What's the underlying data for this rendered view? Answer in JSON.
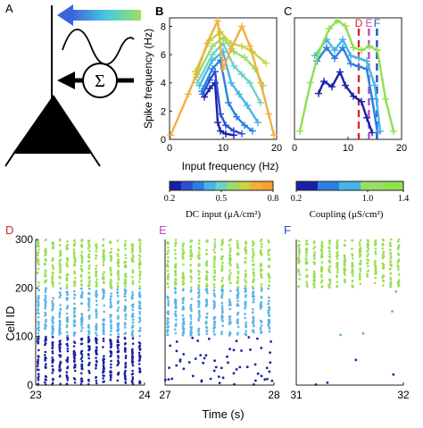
{
  "panels": {
    "A": {
      "label": "A",
      "label_color": "#222222"
    },
    "B": {
      "label": "B",
      "label_color": "#222222"
    },
    "C": {
      "label": "C",
      "label_color": "#222222"
    },
    "D": {
      "label": "D",
      "label_color": "#d62728"
    },
    "E": {
      "label": "E",
      "label_color": "#b84fc4"
    },
    "F": {
      "label": "F",
      "label_color": "#2050c8"
    }
  },
  "schematic": {
    "icons": [
      "input-arrow-icon",
      "sine-wave-icon",
      "summation-node-icon",
      "pyramidal-neuron-icon"
    ],
    "sum_symbol": "Σ",
    "input_gradient": [
      "#3a64dc",
      "#48c8e0",
      "#9ce060"
    ]
  },
  "colorbars": {
    "dc": {
      "ticks": [
        "0.2",
        "0.5",
        "0.8"
      ],
      "label": "DC input (μA/cm²)",
      "colors": [
        "#1a20a8",
        "#2a50d0",
        "#2a80e0",
        "#46b4e6",
        "#6ed2c8",
        "#9adc6a",
        "#c8d440",
        "#f0b040",
        "#f8a030"
      ]
    },
    "coupling": {
      "ticks": [
        "0.2",
        "1.0",
        "1.4"
      ],
      "label": "Coupling (μS/cm²)",
      "colors": [
        "#1a20a8",
        "#2a80e0",
        "#46b4e6",
        "#9adc6a",
        "#90e050"
      ]
    }
  },
  "raster": {
    "ylabel": "Cell ID",
    "xlabel": "Time (s)",
    "yticks": [
      "0",
      "100",
      "200",
      "300"
    ],
    "group_colors": [
      "#1a24a0",
      "#5ab4e6",
      "#96e050"
    ]
  },
  "chart_data": [
    {
      "panel": "B",
      "type": "line",
      "xlabel": "Input frequency (Hz)",
      "ylabel": "Spike frequency (Hz)",
      "xlim": [
        0,
        20
      ],
      "ylim": [
        0,
        8.6
      ],
      "xticks": [
        "0",
        "10",
        "20"
      ],
      "yticks": [
        "0",
        "2",
        "4",
        "6",
        "8"
      ],
      "series": [
        {
          "color": "#1a20a8",
          "points": [
            [
              6.5,
              3.0
            ],
            [
              7.5,
              3.6
            ],
            [
              8.5,
              4.0
            ],
            [
              9.0,
              1.2
            ],
            [
              9.5,
              0.6
            ],
            [
              10.5,
              0.4
            ],
            [
              12.0,
              0.3
            ]
          ]
        },
        {
          "color": "#2a50d0",
          "points": [
            [
              6.2,
              3.2
            ],
            [
              7.5,
              4.2
            ],
            [
              8.5,
              4.8
            ],
            [
              9.5,
              1.8
            ],
            [
              10.5,
              1.0
            ],
            [
              12.0,
              0.6
            ],
            [
              13.5,
              0.4
            ]
          ]
        },
        {
          "color": "#2a80e0",
          "points": [
            [
              6.0,
              3.4
            ],
            [
              8.0,
              5.0
            ],
            [
              9.5,
              5.6
            ],
            [
              11.0,
              2.6
            ],
            [
              12.5,
              1.6
            ],
            [
              14.0,
              1.0
            ],
            [
              15.5,
              0.6
            ]
          ]
        },
        {
          "color": "#46b4e6",
          "points": [
            [
              5.6,
              3.8
            ],
            [
              8.0,
              5.6
            ],
            [
              10.0,
              6.2
            ],
            [
              11.5,
              4.0
            ],
            [
              13.0,
              3.2
            ],
            [
              14.5,
              2.4
            ],
            [
              16.5,
              1.2
            ]
          ]
        },
        {
          "color": "#6ed2c8",
          "points": [
            [
              5.2,
              4.0
            ],
            [
              8.0,
              6.0
            ],
            [
              10.0,
              6.8
            ],
            [
              12.0,
              5.2
            ],
            [
              13.5,
              4.6
            ],
            [
              15.0,
              4.0
            ],
            [
              17.0,
              2.6
            ]
          ]
        },
        {
          "color": "#9adc6a",
          "points": [
            [
              5.0,
              4.4
            ],
            [
              8.0,
              6.6
            ],
            [
              10.0,
              7.2
            ],
            [
              12.0,
              6.2
            ],
            [
              14.0,
              5.8
            ],
            [
              16.0,
              5.0
            ],
            [
              17.5,
              3.8
            ]
          ]
        },
        {
          "color": "#c8d440",
          "points": [
            [
              4.8,
              4.8
            ],
            [
              7.5,
              7.0
            ],
            [
              9.5,
              7.6
            ],
            [
              11.5,
              6.8
            ],
            [
              13.5,
              6.6
            ],
            [
              15.5,
              6.2
            ],
            [
              18.0,
              5.4
            ]
          ]
        },
        {
          "color": "#f0b040",
          "points": [
            [
              0.2,
              0.3
            ],
            [
              3.5,
              3.2
            ],
            [
              5.0,
              4.6
            ],
            [
              7.0,
              6.8
            ],
            [
              9.0,
              8.4
            ],
            [
              10.0,
              5.0
            ],
            [
              11.5,
              6.4
            ],
            [
              13.5,
              8.0
            ],
            [
              15.0,
              6.6
            ],
            [
              17.0,
              4.0
            ],
            [
              18.5,
              1.8
            ],
            [
              19.5,
              0.3
            ]
          ]
        }
      ]
    },
    {
      "panel": "C",
      "type": "line",
      "xlim": [
        0,
        20
      ],
      "ylim": [
        0,
        9.0
      ],
      "xticks": [
        "0",
        "10",
        "20"
      ],
      "vlines": [
        {
          "x": 12.0,
          "label": "D",
          "color": "#d62728"
        },
        {
          "x": 13.9,
          "label": "E",
          "color": "#b84fc4"
        },
        {
          "x": 15.4,
          "label": "F",
          "color": "#2050c8"
        }
      ],
      "series": [
        {
          "color": "#1a20a8",
          "points": [
            [
              4.5,
              3.4
            ],
            [
              5.5,
              4.3
            ],
            [
              7.0,
              3.9
            ],
            [
              8.5,
              5.0
            ],
            [
              9.5,
              4.0
            ],
            [
              11.0,
              3.2
            ],
            [
              12.5,
              2.8
            ],
            [
              13.5,
              1.6
            ],
            [
              14.5,
              0.5
            ]
          ]
        },
        {
          "color": "#2a80e0",
          "points": [
            [
              4.2,
              5.8
            ],
            [
              6.0,
              6.8
            ],
            [
              7.5,
              6.0
            ],
            [
              9.0,
              6.8
            ],
            [
              10.5,
              5.6
            ],
            [
              12.0,
              5.4
            ],
            [
              13.5,
              5.2
            ],
            [
              14.5,
              3.0
            ],
            [
              15.5,
              0.5
            ]
          ]
        },
        {
          "color": "#46b4e6",
          "points": [
            [
              3.8,
              6.2
            ],
            [
              6.0,
              7.4
            ],
            [
              7.5,
              6.6
            ],
            [
              9.0,
              7.4
            ],
            [
              10.5,
              6.2
            ],
            [
              12.0,
              6.0
            ],
            [
              13.5,
              5.8
            ],
            [
              15.0,
              4.0
            ],
            [
              16.0,
              0.6
            ]
          ]
        },
        {
          "color": "#90e050",
          "points": [
            [
              1.0,
              0.6
            ],
            [
              3.0,
              4.2
            ],
            [
              4.5,
              6.4
            ],
            [
              6.5,
              8.2
            ],
            [
              8.0,
              8.8
            ],
            [
              9.5,
              8.4
            ],
            [
              11.0,
              6.8
            ],
            [
              12.5,
              6.6
            ],
            [
              14.0,
              6.9
            ],
            [
              15.5,
              6.6
            ],
            [
              17.0,
              3.0
            ],
            [
              18.5,
              0.6
            ]
          ]
        }
      ]
    },
    {
      "panel": "D",
      "type": "scatter",
      "xlim": [
        23,
        24
      ],
      "ylim": [
        0,
        300
      ],
      "xticks": [
        "23",
        "24"
      ],
      "bursts_per_second": 15,
      "groups": [
        {
          "cells": [
            1,
            100
          ],
          "color": "#1a24a0",
          "pattern": "synchronous"
        },
        {
          "cells": [
            101,
            200
          ],
          "color": "#5ab4e6",
          "pattern": "synchronous"
        },
        {
          "cells": [
            201,
            300
          ],
          "color": "#96e050",
          "pattern": "synchronous"
        }
      ]
    },
    {
      "panel": "E",
      "type": "scatter",
      "xlim": [
        27,
        28
      ],
      "ylim": [
        0,
        300
      ],
      "xticks": [
        "27",
        "28"
      ],
      "bursts_per_second": 14,
      "groups": [
        {
          "cells": [
            1,
            100
          ],
          "color": "#1a24a0",
          "pattern": "sparse"
        },
        {
          "cells": [
            101,
            200
          ],
          "color": "#5ab4e6",
          "pattern": "synchronous"
        },
        {
          "cells": [
            201,
            300
          ],
          "color": "#96e050",
          "pattern": "synchronous"
        }
      ]
    },
    {
      "panel": "F",
      "type": "scatter",
      "xlim": [
        31,
        32
      ],
      "ylim": [
        0,
        300
      ],
      "xticks": [
        "31",
        "32"
      ],
      "bursts_per_second": 14,
      "groups": [
        {
          "cells": [
            1,
            100
          ],
          "color": "#1a24a0",
          "pattern": "silent"
        },
        {
          "cells": [
            101,
            200
          ],
          "color": "#5ab4e6",
          "pattern": "silent"
        },
        {
          "cells": [
            201,
            300
          ],
          "color": "#96e050",
          "pattern": "synchronous"
        }
      ]
    }
  ]
}
